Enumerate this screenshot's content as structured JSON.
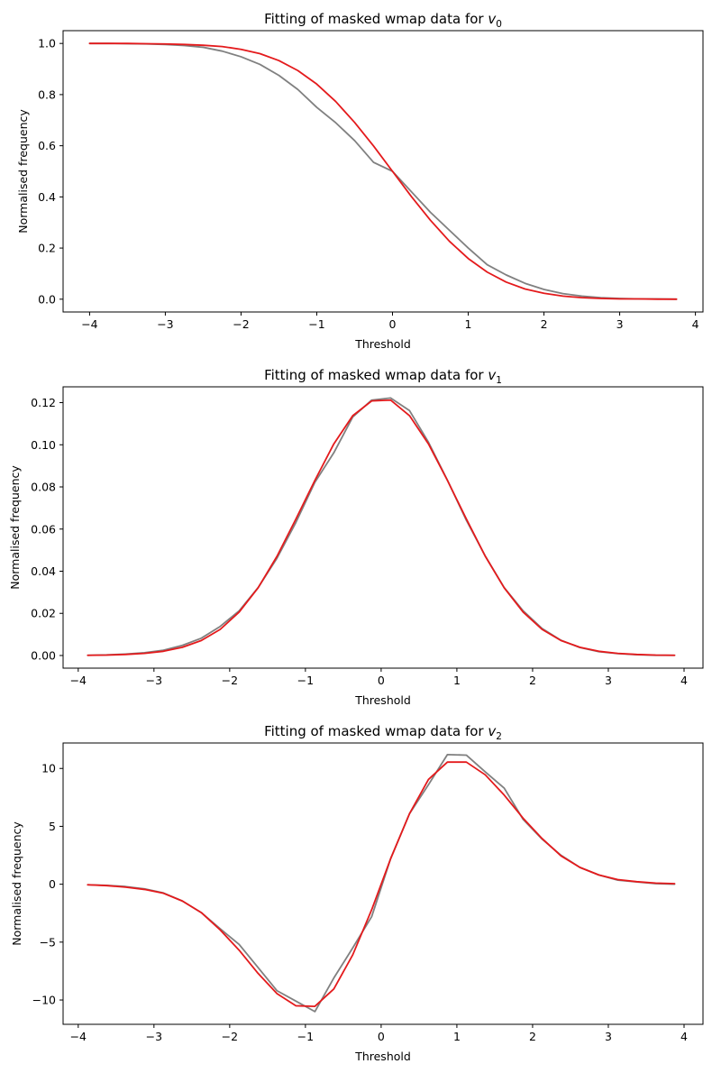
{
  "chart_data": [
    {
      "type": "line",
      "title": "Fitting of masked wmap data for ",
      "title_math": "v",
      "title_sub": "0",
      "xlabel": "Threshold",
      "ylabel": "Normalised frequency",
      "xlim": [
        -4.35,
        4.1
      ],
      "ylim": [
        -0.05,
        1.05
      ],
      "xticks": [
        -4,
        -3,
        -2,
        -1,
        0,
        1,
        2,
        3,
        4
      ],
      "yticks": [
        0.0,
        0.2,
        0.4,
        0.6,
        0.8,
        1.0
      ],
      "ytick_decimals": 1,
      "grid": false,
      "series": [
        {
          "color": "#808080",
          "x": [
            -4.0,
            -3.75,
            -3.5,
            -3.25,
            -3.0,
            -2.75,
            -2.5,
            -2.25,
            -2.0,
            -1.75,
            -1.5,
            -1.25,
            -1.0,
            -0.75,
            -0.5,
            -0.25,
            0.0,
            0.25,
            0.5,
            0.75,
            1.0,
            1.25,
            1.5,
            1.75,
            2.0,
            2.25,
            2.5,
            2.75,
            3.0,
            3.25,
            3.5,
            3.75
          ],
          "y": [
            1.0,
            1.0,
            0.999,
            0.998,
            0.996,
            0.992,
            0.985,
            0.97,
            0.948,
            0.918,
            0.875,
            0.82,
            0.75,
            0.69,
            0.62,
            0.535,
            0.5,
            0.42,
            0.34,
            0.27,
            0.2,
            0.135,
            0.095,
            0.062,
            0.038,
            0.022,
            0.012,
            0.006,
            0.003,
            0.001,
            0.001,
            0.0
          ]
        },
        {
          "color": "#e41a1c",
          "x": [
            -4.0,
            -3.75,
            -3.5,
            -3.25,
            -3.0,
            -2.75,
            -2.5,
            -2.25,
            -2.0,
            -1.75,
            -1.5,
            -1.25,
            -1.0,
            -0.75,
            -0.5,
            -0.25,
            0.0,
            0.25,
            0.5,
            0.75,
            1.0,
            1.25,
            1.5,
            1.75,
            2.0,
            2.25,
            2.5,
            2.75,
            3.0,
            3.25,
            3.5,
            3.75
          ],
          "y": [
            1.0,
            1.0,
            1.0,
            0.999,
            0.998,
            0.996,
            0.993,
            0.988,
            0.977,
            0.96,
            0.933,
            0.894,
            0.841,
            0.773,
            0.691,
            0.599,
            0.5,
            0.401,
            0.309,
            0.227,
            0.159,
            0.106,
            0.067,
            0.04,
            0.023,
            0.012,
            0.006,
            0.003,
            0.001,
            0.001,
            0.0,
            0.0
          ]
        }
      ]
    },
    {
      "type": "line",
      "title": "Fitting of masked wmap data for ",
      "title_math": "v",
      "title_sub": "1",
      "xlabel": "Threshold",
      "ylabel": "Normalised frequency",
      "xlim": [
        -4.2,
        4.25
      ],
      "ylim": [
        -0.006,
        0.1275
      ],
      "xticks": [
        -4,
        -3,
        -2,
        -1,
        0,
        1,
        2,
        3,
        4
      ],
      "yticks": [
        0.0,
        0.02,
        0.04,
        0.06,
        0.08,
        0.1,
        0.12
      ],
      "ytick_decimals": 2,
      "grid": false,
      "series": [
        {
          "color": "#808080",
          "x": [
            -3.875,
            -3.625,
            -3.375,
            -3.125,
            -2.875,
            -2.625,
            -2.375,
            -2.125,
            -1.875,
            -1.625,
            -1.375,
            -1.125,
            -0.875,
            -0.625,
            -0.375,
            -0.125,
            0.125,
            0.375,
            0.625,
            0.875,
            1.125,
            1.375,
            1.625,
            1.875,
            2.125,
            2.375,
            2.625,
            2.875,
            3.125,
            3.375,
            3.625,
            3.875
          ],
          "y": [
            0.0001,
            0.0003,
            0.0007,
            0.0013,
            0.0025,
            0.0048,
            0.0082,
            0.0138,
            0.0212,
            0.0322,
            0.0462,
            0.0632,
            0.0822,
            0.0962,
            0.1132,
            0.1212,
            0.1222,
            0.1162,
            0.1012,
            0.0832,
            0.0642,
            0.0472,
            0.0322,
            0.0212,
            0.0128,
            0.0072,
            0.0038,
            0.0018,
            0.0009,
            0.0004,
            0.0001,
            0.0001
          ]
        },
        {
          "color": "#e41a1c",
          "x": [
            -3.875,
            -3.625,
            -3.375,
            -3.125,
            -2.875,
            -2.625,
            -2.375,
            -2.125,
            -1.875,
            -1.625,
            -1.375,
            -1.125,
            -0.875,
            -0.625,
            -0.375,
            -0.125,
            0.125,
            0.375,
            0.625,
            0.875,
            1.125,
            1.375,
            1.625,
            1.875,
            2.125,
            2.375,
            2.625,
            2.875,
            3.125,
            3.375,
            3.625,
            3.875
          ],
          "y": [
            0.0001,
            0.0002,
            0.0005,
            0.001,
            0.002,
            0.0039,
            0.0071,
            0.0124,
            0.0206,
            0.0321,
            0.0471,
            0.0648,
            0.0831,
            0.1004,
            0.1138,
            0.1208,
            0.1212,
            0.1138,
            0.1004,
            0.0831,
            0.0648,
            0.0471,
            0.0321,
            0.0206,
            0.0124,
            0.0071,
            0.0039,
            0.002,
            0.001,
            0.0005,
            0.0002,
            0.0001
          ]
        }
      ]
    },
    {
      "type": "line",
      "title": "Fitting of masked wmap data for ",
      "title_math": "v",
      "title_sub": "2",
      "xlabel": "Threshold",
      "ylabel": "Normalised frequency",
      "xlim": [
        -4.2,
        4.25
      ],
      "ylim": [
        -12.1,
        12.2
      ],
      "xticks": [
        -4,
        -3,
        -2,
        -1,
        0,
        1,
        2,
        3,
        4
      ],
      "yticks": [
        -10,
        -5,
        0,
        5,
        10
      ],
      "ytick_decimals": 0,
      "grid": false,
      "series": [
        {
          "color": "#808080",
          "x": [
            -3.875,
            -3.625,
            -3.375,
            -3.125,
            -2.875,
            -2.625,
            -2.375,
            -2.125,
            -1.875,
            -1.625,
            -1.375,
            -1.125,
            -0.875,
            -0.625,
            -0.375,
            -0.125,
            0.125,
            0.375,
            0.625,
            0.875,
            1.125,
            1.375,
            1.625,
            1.875,
            2.125,
            2.375,
            2.625,
            2.875,
            3.125,
            3.375,
            3.625,
            3.875
          ],
          "y": [
            -0.05,
            -0.1,
            -0.2,
            -0.4,
            -0.75,
            -1.45,
            -2.45,
            -3.85,
            -5.2,
            -7.2,
            -9.2,
            -10.1,
            -11.0,
            -8.1,
            -5.5,
            -2.8,
            2.2,
            6.1,
            8.6,
            11.2,
            11.15,
            9.7,
            8.3,
            5.6,
            3.9,
            2.5,
            1.45,
            0.8,
            0.35,
            0.2,
            0.05,
            0.0
          ]
        },
        {
          "color": "#e41a1c",
          "x": [
            -3.875,
            -3.625,
            -3.375,
            -3.125,
            -2.875,
            -2.625,
            -2.375,
            -2.125,
            -1.875,
            -1.625,
            -1.375,
            -1.125,
            -0.875,
            -0.625,
            -0.375,
            -0.125,
            0.125,
            0.375,
            0.625,
            0.875,
            1.125,
            1.375,
            1.625,
            1.875,
            2.125,
            2.375,
            2.625,
            2.875,
            3.125,
            3.375,
            3.625,
            3.875
          ],
          "y": [
            -0.05,
            -0.12,
            -0.25,
            -0.45,
            -0.78,
            -1.45,
            -2.45,
            -3.95,
            -5.7,
            -7.7,
            -9.45,
            -10.5,
            -10.55,
            -9.05,
            -6.1,
            -2.2,
            2.2,
            6.1,
            9.05,
            10.55,
            10.55,
            9.45,
            7.7,
            5.7,
            3.95,
            2.45,
            1.45,
            0.8,
            0.4,
            0.22,
            0.1,
            0.05
          ]
        }
      ]
    }
  ]
}
